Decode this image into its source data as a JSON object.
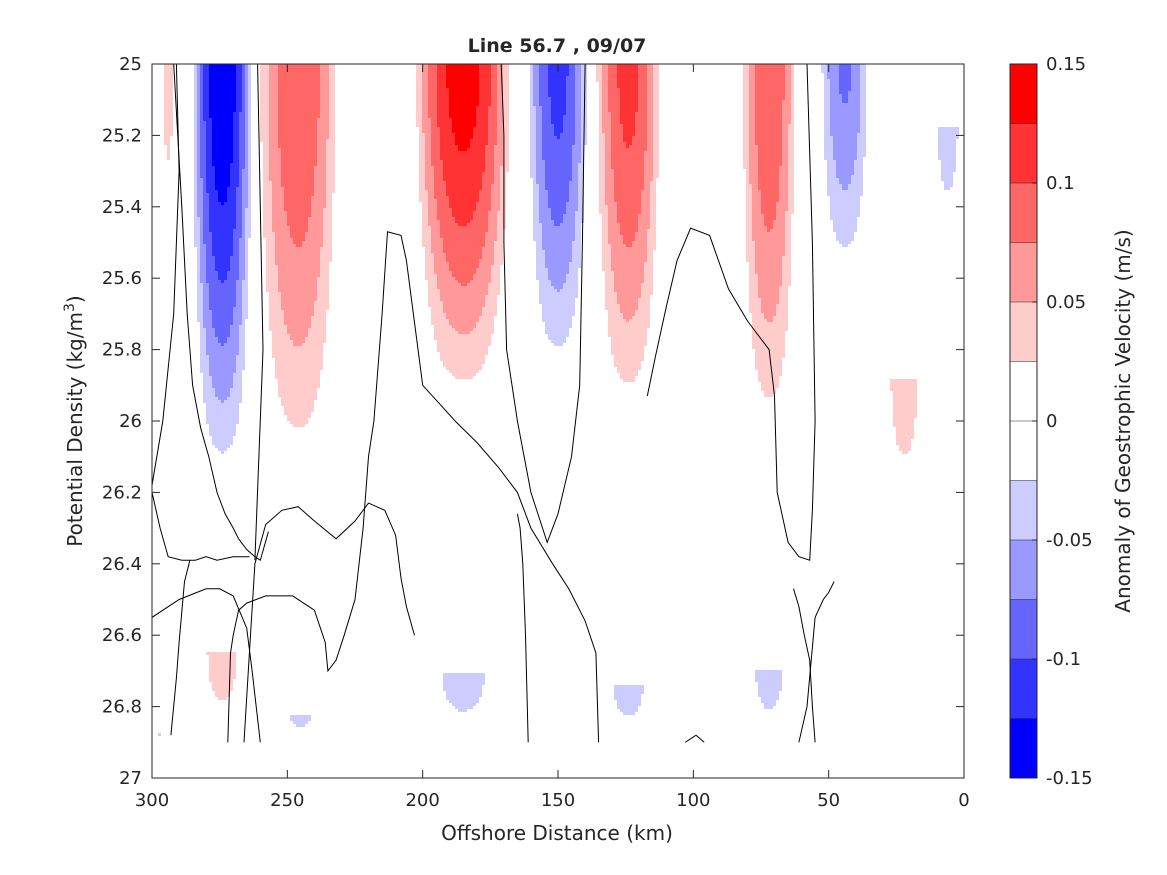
{
  "chart_data": {
    "type": "heatmap",
    "title": "Line 56.7 , 09/07",
    "xlabel": "Offshore Distance (km)",
    "ylabel": "Potential Density (kg/m3)",
    "ylabel_main": "Potential Density (kg/m",
    "ylabel_sup": "3",
    "ylabel_tail": ")",
    "xlim": [
      300,
      0
    ],
    "ylim": [
      25,
      27
    ],
    "x_reversed": true,
    "y_reversed": true,
    "x_ticks": [
      300,
      250,
      200,
      150,
      100,
      50,
      0
    ],
    "x_tick_labels": [
      "300",
      "250",
      "200",
      "150",
      "100",
      "50",
      "0"
    ],
    "y_ticks": [
      25,
      25.2,
      25.4,
      25.6,
      25.8,
      26,
      26.2,
      26.4,
      26.6,
      26.8,
      27
    ],
    "y_tick_labels": [
      "25",
      "25.2",
      "25.4",
      "25.6",
      "25.8",
      "26",
      "26.2",
      "26.4",
      "26.6",
      "26.8",
      "27"
    ],
    "colorbar": {
      "label": "Anomaly of Geostrophic Velocity (m/s)",
      "range": [
        -0.15,
        0.15
      ],
      "ticks": [
        0.15,
        0.1,
        0.05,
        0,
        -0.05,
        -0.1,
        -0.15
      ],
      "tick_labels": [
        "0.15",
        "0.1",
        "0.05",
        "0",
        "-0.05",
        "-0.1",
        "-0.15"
      ],
      "levels": [
        {
          "lo": 0.125,
          "hi": 0.15,
          "color": "#ff0000"
        },
        {
          "lo": 0.1,
          "hi": 0.125,
          "color": "#ff3333"
        },
        {
          "lo": 0.075,
          "hi": 0.1,
          "color": "#ff6666"
        },
        {
          "lo": 0.05,
          "hi": 0.075,
          "color": "#ff9999"
        },
        {
          "lo": 0.025,
          "hi": 0.05,
          "color": "#ffcccc"
        },
        {
          "lo": 0.0,
          "hi": 0.025,
          "color": "#ffffff"
        },
        {
          "lo": -0.025,
          "hi": 0.0,
          "color": "#ffffff"
        },
        {
          "lo": -0.05,
          "hi": -0.025,
          "color": "#ccccff"
        },
        {
          "lo": -0.075,
          "hi": -0.05,
          "color": "#9999ff"
        },
        {
          "lo": -0.1,
          "hi": -0.075,
          "color": "#6666ff"
        },
        {
          "lo": -0.125,
          "hi": -0.1,
          "color": "#3333ff"
        },
        {
          "lo": -0.15,
          "hi": -0.125,
          "color": "#0000ff"
        }
      ]
    },
    "cores": [
      {
        "x": 274,
        "half_width": 12,
        "y_top": 25.0,
        "y_bottom": 26.22,
        "peak": -0.15
      },
      {
        "x": 246,
        "half_width": 16,
        "y_top": 25.0,
        "y_bottom": 26.22,
        "peak": 0.1
      },
      {
        "x": 185,
        "half_width": 19,
        "y_top": 25.0,
        "y_bottom": 26.0,
        "peak": 0.14
      },
      {
        "x": 150,
        "half_width": 12,
        "y_top": 25.0,
        "y_bottom": 25.93,
        "peak": -0.11
      },
      {
        "x": 124,
        "half_width": 13,
        "y_top": 25.0,
        "y_bottom": 26.05,
        "peak": 0.11
      },
      {
        "x": 72,
        "half_width": 11,
        "y_top": 25.0,
        "y_bottom": 26.12,
        "peak": 0.1
      },
      {
        "x": 44,
        "half_width": 10,
        "y_top": 25.0,
        "y_bottom": 25.65,
        "peak": -0.08
      },
      {
        "x": 294,
        "half_width": 3,
        "y_top": 25.0,
        "y_bottom": 25.5,
        "peak": 0.04
      },
      {
        "x": 22,
        "half_width": 8,
        "y_top": 25.88,
        "y_bottom": 26.28,
        "peak": 0.04
      },
      {
        "x": 6,
        "half_width": 6,
        "y_top": 25.18,
        "y_bottom": 25.5,
        "peak": -0.04
      },
      {
        "x": 274,
        "half_width": 9,
        "y_top": 26.65,
        "y_bottom": 26.9,
        "peak": 0.04
      },
      {
        "x": 185,
        "half_width": 13,
        "y_top": 26.71,
        "y_bottom": 26.9,
        "peak": -0.04
      },
      {
        "x": 124,
        "half_width": 9,
        "y_top": 26.74,
        "y_bottom": 26.9,
        "peak": -0.04
      },
      {
        "x": 72,
        "half_width": 8,
        "y_top": 26.7,
        "y_bottom": 26.9,
        "peak": -0.04
      },
      {
        "x": 245,
        "half_width": 8,
        "y_top": 26.82,
        "y_bottom": 26.9,
        "peak": -0.035
      },
      {
        "x": 297,
        "half_width": 2,
        "y_top": 26.87,
        "y_bottom": 26.9,
        "peak": -0.03
      }
    ],
    "data_y_max": 26.9,
    "zero_contours": [
      [
        [
          292,
          25.0
        ],
        [
          289,
          25.4
        ],
        [
          287,
          25.7
        ],
        [
          285,
          25.9
        ],
        [
          282,
          26.02
        ],
        [
          279,
          26.1
        ],
        [
          276,
          26.2
        ],
        [
          273,
          26.26
        ],
        [
          270,
          26.3
        ],
        [
          268,
          26.33
        ],
        [
          265,
          26.36
        ],
        [
          262,
          26.38
        ],
        [
          260,
          26.39
        ],
        [
          257,
          26.31
        ]
      ],
      [
        [
          262,
          26.39
        ],
        [
          259,
          25.8
        ],
        [
          260,
          25.4
        ],
        [
          261,
          25.0
        ]
      ],
      [
        [
          300,
          26.18
        ],
        [
          296,
          26.0
        ],
        [
          292,
          25.7
        ],
        [
          290,
          25.3
        ],
        [
          291,
          25.0
        ]
      ],
      [
        [
          300,
          26.2
        ],
        [
          297,
          26.3
        ],
        [
          294,
          26.38
        ],
        [
          289,
          26.39
        ],
        [
          284,
          26.39
        ],
        [
          280,
          26.38
        ],
        [
          276,
          26.39
        ],
        [
          270,
          26.38
        ],
        [
          264,
          26.38
        ]
      ],
      [
        [
          293,
          26.88
        ],
        [
          291,
          26.72
        ],
        [
          290,
          26.62
        ],
        [
          288,
          26.45
        ],
        [
          286,
          26.39
        ]
      ],
      [
        [
          260,
          26.9
        ],
        [
          263,
          26.7
        ],
        [
          265,
          26.58
        ],
        [
          270,
          26.49
        ],
        [
          275,
          26.47
        ],
        [
          280,
          26.47
        ],
        [
          290,
          26.5
        ],
        [
          300,
          26.55
        ],
        [
          310,
          26.6
        ]
      ],
      [
        [
          203,
          26.6
        ],
        [
          206,
          26.52
        ],
        [
          208,
          26.44
        ],
        [
          210,
          26.32
        ],
        [
          214,
          26.25
        ],
        [
          220,
          26.23
        ],
        [
          225,
          26.28
        ],
        [
          232,
          26.33
        ],
        [
          240,
          26.28
        ],
        [
          246,
          26.24
        ],
        [
          252,
          26.25
        ],
        [
          258,
          26.29
        ],
        [
          262,
          26.4
        ],
        [
          264,
          26.65
        ],
        [
          266,
          26.9
        ]
      ],
      [
        [
          140,
          25.0
        ],
        [
          141,
          25.5
        ],
        [
          142,
          25.9
        ],
        [
          145,
          26.1
        ],
        [
          150,
          26.26
        ],
        [
          154,
          26.34
        ],
        [
          160,
          26.2
        ],
        [
          165,
          26.0
        ],
        [
          169,
          25.8
        ],
        [
          170,
          25.5
        ],
        [
          170,
          25.2
        ],
        [
          171,
          25.0
        ]
      ],
      [
        [
          161,
          26.9
        ],
        [
          162,
          26.6
        ],
        [
          163,
          26.4
        ],
        [
          164,
          26.3
        ],
        [
          165,
          26.26
        ]
      ],
      [
        [
          135,
          26.9
        ],
        [
          136,
          26.65
        ],
        [
          140,
          26.56
        ],
        [
          146,
          26.47
        ],
        [
          152,
          26.4
        ],
        [
          160,
          26.3
        ],
        [
          165,
          26.2
        ],
        [
          172,
          26.13
        ],
        [
          180,
          26.06
        ],
        [
          188,
          26.0
        ],
        [
          194,
          25.95
        ],
        [
          200,
          25.9
        ],
        [
          206,
          25.55
        ],
        [
          208,
          25.48
        ],
        [
          213,
          25.47
        ],
        [
          215,
          25.7
        ],
        [
          218,
          26.0
        ],
        [
          220,
          26.1
        ],
        [
          222,
          26.3
        ],
        [
          225,
          26.5
        ],
        [
          229,
          26.6
        ],
        [
          232,
          26.67
        ],
        [
          235,
          26.7
        ],
        [
          236,
          26.62
        ],
        [
          240,
          26.53
        ],
        [
          248,
          26.49
        ],
        [
          258,
          26.49
        ],
        [
          265,
          26.51
        ],
        [
          268,
          26.53
        ],
        [
          270,
          26.6
        ],
        [
          271,
          26.65
        ],
        [
          272,
          26.9
        ]
      ],
      [
        [
          63,
          26.47
        ],
        [
          61,
          26.52
        ],
        [
          59,
          26.6
        ],
        [
          57,
          26.67
        ],
        [
          56,
          26.8
        ],
        [
          55,
          26.9
        ]
      ],
      [
        [
          58,
          25.0
        ],
        [
          56,
          25.5
        ],
        [
          55,
          26.0
        ],
        [
          56,
          26.25
        ],
        [
          57,
          26.39
        ],
        [
          61,
          26.38
        ],
        [
          65,
          26.34
        ],
        [
          69,
          26.2
        ],
        [
          70,
          25.93
        ],
        [
          72,
          25.8
        ],
        [
          80,
          25.72
        ],
        [
          87,
          25.63
        ],
        [
          94,
          25.48
        ],
        [
          101,
          25.46
        ],
        [
          106,
          25.55
        ],
        [
          110,
          25.68
        ],
        [
          114,
          25.82
        ],
        [
          117,
          25.93
        ]
      ],
      [
        [
          48,
          26.45
        ],
        [
          50,
          26.48
        ],
        [
          52,
          26.5
        ],
        [
          55,
          26.55
        ],
        [
          58,
          26.8
        ],
        [
          61,
          26.9
        ]
      ]
    ],
    "small_mark": [
      [
        103,
        26.9
      ],
      [
        99,
        26.88
      ],
      [
        96,
        26.9
      ]
    ]
  }
}
